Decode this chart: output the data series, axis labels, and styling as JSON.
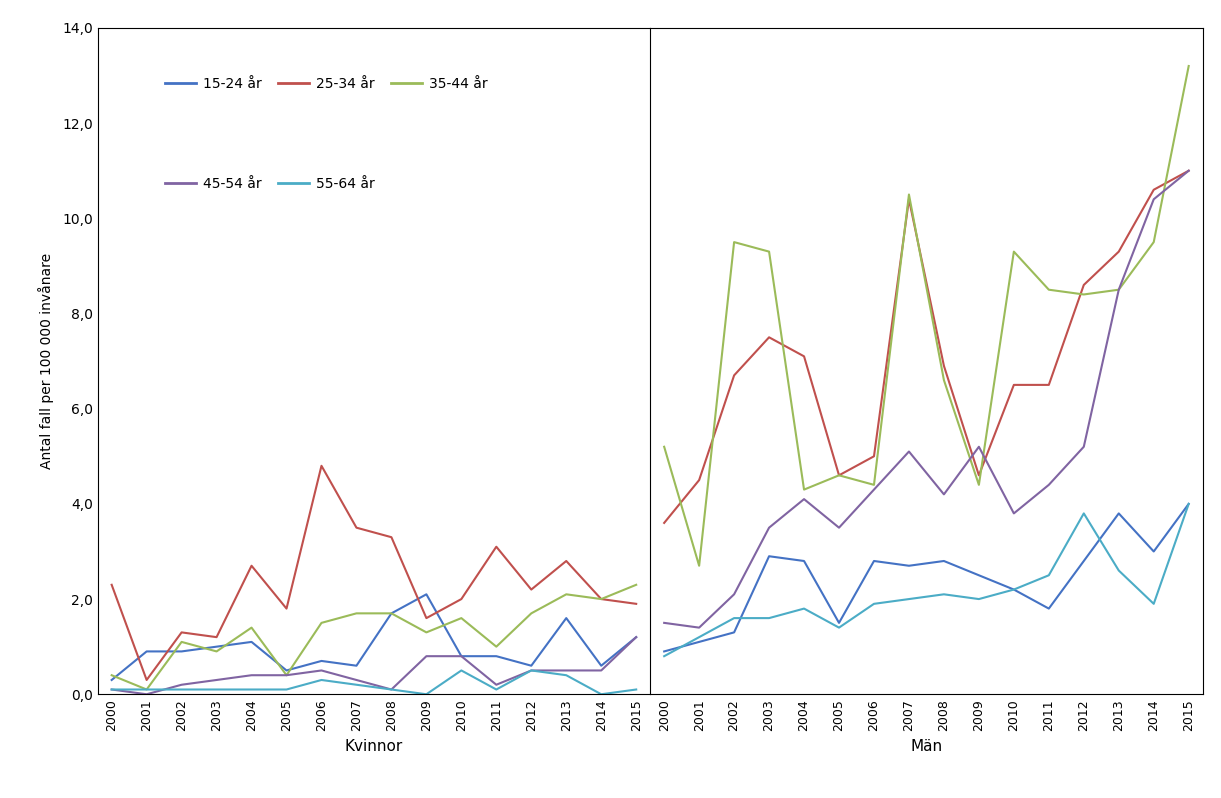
{
  "years": [
    2000,
    2001,
    2002,
    2003,
    2004,
    2005,
    2006,
    2007,
    2008,
    2009,
    2010,
    2011,
    2012,
    2013,
    2014,
    2015
  ],
  "kvinnor": {
    "15-24": [
      0.3,
      0.9,
      0.9,
      1.0,
      1.1,
      0.5,
      0.7,
      0.6,
      1.7,
      2.1,
      0.8,
      0.8,
      0.6,
      1.6,
      0.6,
      1.2
    ],
    "25-34": [
      2.3,
      0.3,
      1.3,
      1.2,
      2.7,
      1.8,
      4.8,
      3.5,
      3.3,
      1.6,
      2.0,
      3.1,
      2.2,
      2.8,
      2.0,
      1.9
    ],
    "35-44": [
      0.4,
      0.1,
      1.1,
      0.9,
      1.4,
      0.4,
      1.5,
      1.7,
      1.7,
      1.3,
      1.6,
      1.0,
      1.7,
      2.1,
      2.0,
      2.3
    ],
    "45-54": [
      0.1,
      0.0,
      0.2,
      0.3,
      0.4,
      0.4,
      0.5,
      0.3,
      0.1,
      0.8,
      0.8,
      0.2,
      0.5,
      0.5,
      0.5,
      1.2
    ],
    "55-64": [
      0.1,
      0.1,
      0.1,
      0.1,
      0.1,
      0.1,
      0.3,
      0.2,
      0.1,
      0.0,
      0.5,
      0.1,
      0.5,
      0.4,
      0.0,
      0.1
    ]
  },
  "man": {
    "15-24": [
      0.9,
      1.1,
      1.3,
      2.9,
      2.8,
      1.5,
      2.8,
      2.7,
      2.8,
      2.5,
      2.2,
      1.8,
      2.8,
      3.8,
      3.0,
      4.0
    ],
    "25-34": [
      3.6,
      4.5,
      6.7,
      7.5,
      7.1,
      4.6,
      5.0,
      10.4,
      6.9,
      4.6,
      6.5,
      6.5,
      8.6,
      9.3,
      10.6,
      11.0
    ],
    "35-44": [
      5.2,
      2.7,
      9.5,
      9.3,
      4.3,
      4.6,
      4.4,
      10.5,
      6.6,
      4.4,
      9.3,
      8.5,
      8.4,
      8.5,
      9.5,
      13.2
    ],
    "45-54": [
      1.5,
      1.4,
      2.1,
      3.5,
      4.1,
      3.5,
      4.3,
      5.1,
      4.2,
      5.2,
      3.8,
      4.4,
      5.2,
      8.5,
      10.4,
      11.0
    ],
    "55-64": [
      0.8,
      1.2,
      1.6,
      1.6,
      1.8,
      1.4,
      1.9,
      2.0,
      2.1,
      2.0,
      2.2,
      2.5,
      3.8,
      2.6,
      1.9,
      4.0
    ]
  },
  "colors": {
    "15-24": "#4472C4",
    "25-34": "#C0504D",
    "35-44": "#9BBB59",
    "45-54": "#8064A2",
    "55-64": "#4BACC6"
  },
  "labels": {
    "15-24": "15-24 år",
    "25-34": "25-34 år",
    "35-44": "35-44 år",
    "45-54": "45-54 år",
    "55-64": "55-64 år"
  },
  "ylabel": "Antal fall per 100 000 invånare",
  "xlabel_left": "Kvinnor",
  "xlabel_right": "Män",
  "ylim": [
    0,
    14.0
  ],
  "yticks": [
    0.0,
    2.0,
    4.0,
    6.0,
    8.0,
    10.0,
    12.0,
    14.0
  ],
  "ytick_labels": [
    "0,0",
    "2,0",
    "4,0",
    "6,0",
    "8,0",
    "10,0",
    "12,0",
    "14,0"
  ],
  "age_groups": [
    "15-24",
    "25-34",
    "35-44",
    "45-54",
    "55-64"
  ]
}
